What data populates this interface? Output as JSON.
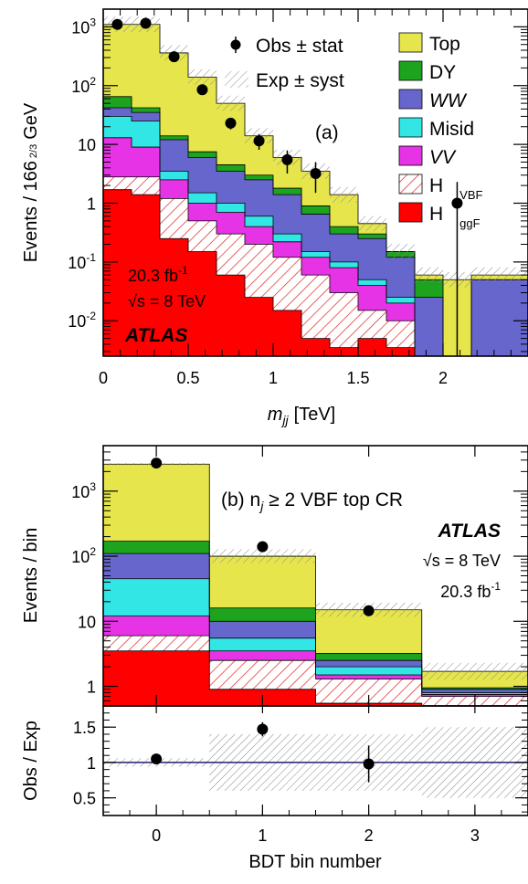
{
  "colors": {
    "Top": "#e6e64c",
    "DY": "#1da31d",
    "WW": "#6666cc",
    "Misid": "#33e6e6",
    "VV": "#e633e6",
    "HVBF": "#e02020",
    "HggF": "#ff0000",
    "syst": "#888888",
    "line": "#1f1f6b"
  },
  "chart_data": [
    {
      "type": "bar",
      "panel": "top",
      "tag": "(a)",
      "xlabel": "m",
      "xlabel_sub": "jj",
      "xlabel_unit": "[TeV]",
      "ylabel": "Events / 166",
      "ylabel_frac": "2/3",
      "ylabel_unit": "GeV",
      "ylim": [
        0.0025,
        2000
      ],
      "yscale": "log",
      "xlim": [
        0,
        2.5
      ],
      "xticks": [
        "0",
        "0.5",
        "1",
        "1.5",
        "2"
      ],
      "yticks": [
        "10-2",
        "10-1",
        "1",
        "10",
        "102",
        "103"
      ],
      "lumi": "20.3 fb-1",
      "energy": "√s = 8 TeV",
      "experiment": "ATLAS",
      "legend": [
        {
          "key": "obs",
          "label": "Obs ± stat"
        },
        {
          "key": "exp",
          "label": "Exp ± syst"
        },
        {
          "key": "Top",
          "label": "Top"
        },
        {
          "key": "DY",
          "label": "DY"
        },
        {
          "key": "WW",
          "label": "WW"
        },
        {
          "key": "Misid",
          "label": "Misid"
        },
        {
          "key": "VV",
          "label": "VV"
        },
        {
          "key": "HVBF",
          "label": "H",
          "sub": "VBF"
        },
        {
          "key": "HggF",
          "label": "H",
          "sub": "ggF"
        }
      ],
      "bin_edges": [
        0,
        0.1667,
        0.3333,
        0.5,
        0.6667,
        0.8333,
        1.0,
        1.1667,
        1.3333,
        1.5,
        1.6667,
        1.8333,
        2.0,
        2.1667,
        2.3333,
        2.5
      ],
      "stack_tops": {
        "HggF": [
          1.7,
          1.4,
          0.25,
          0.15,
          0.06,
          0.025,
          0.015,
          0.005,
          0.0035,
          0.005,
          0.0035,
          0.002,
          0.002,
          0.002,
          0.002
        ],
        "HVBF": [
          2.8,
          2.8,
          1.2,
          0.5,
          0.3,
          0.2,
          0.12,
          0.06,
          0.03,
          0.015,
          0.01,
          0.002,
          0.002,
          0.002,
          0.002
        ],
        "VV": [
          13,
          9,
          2.5,
          1.0,
          0.7,
          0.4,
          0.22,
          0.12,
          0.08,
          0.04,
          0.02,
          0.002,
          0.002,
          0.002,
          0.002
        ],
        "Misid": [
          30,
          25,
          3.5,
          1.5,
          1.0,
          0.6,
          0.3,
          0.15,
          0.1,
          0.05,
          0.025,
          0.002,
          0.002,
          0.002,
          0.002
        ],
        "WW": [
          42,
          35,
          12,
          6,
          3.5,
          2.5,
          1.4,
          0.65,
          0.3,
          0.25,
          0.12,
          0.025,
          0.002,
          0.05,
          0.05
        ],
        "DY": [
          65,
          42,
          14,
          7.5,
          4.5,
          3.0,
          1.8,
          0.9,
          0.4,
          0.3,
          0.15,
          0.05,
          0.002,
          0.05,
          0.05
        ],
        "Top": [
          1100,
          1100,
          360,
          140,
          50,
          14,
          6,
          3.5,
          1.4,
          0.45,
          0.15,
          0.06,
          0.05,
          0.06,
          0.06
        ]
      },
      "observed": [
        {
          "x": 0.083,
          "y": 1100,
          "err_lo": 1067,
          "err_hi": 1133
        },
        {
          "x": 0.25,
          "y": 1150,
          "err_lo": 1116,
          "err_hi": 1184
        },
        {
          "x": 0.417,
          "y": 310,
          "err_lo": 292,
          "err_hi": 328
        },
        {
          "x": 0.583,
          "y": 85,
          "err_lo": 76,
          "err_hi": 94
        },
        {
          "x": 0.75,
          "y": 23,
          "err_lo": 18,
          "err_hi": 28
        },
        {
          "x": 0.917,
          "y": 11.5,
          "err_lo": 8.1,
          "err_hi": 15
        },
        {
          "x": 1.083,
          "y": 5.5,
          "err_lo": 3.2,
          "err_hi": 7.9
        },
        {
          "x": 1.25,
          "y": 3.2,
          "err_lo": 1.5,
          "err_hi": 5.0
        },
        {
          "x": 2.083,
          "y": 1.0,
          "err_lo": 0.0025,
          "err_hi": 2.3
        }
      ]
    },
    {
      "type": "bar",
      "panel": "bottom",
      "tag": "(b) nj ≥ 2 VBF top CR",
      "tag_prefix": "(b) n",
      "tag_sub": "j",
      "tag_rest": " ≥ 2 VBF top CR",
      "xlabel": "BDT bin number",
      "ylabel": "Events / bin",
      "ratio_ylabel": "Obs / Exp",
      "experiment": "ATLAS",
      "energy": "√s = 8 TeV",
      "lumi": "20.3 fb-1",
      "ylim": [
        0.5,
        5000
      ],
      "yscale": "log",
      "xlim": [
        -0.5,
        3.5
      ],
      "xticks": [
        "0",
        "1",
        "2",
        "3"
      ],
      "yticks": [
        "1",
        "10",
        "102",
        "103"
      ],
      "categories": [
        "0",
        "1",
        "2",
        "3"
      ],
      "stack_tops": {
        "HggF": [
          3.5,
          0.9,
          0.55,
          0.5
        ],
        "HVBF": [
          6,
          2.5,
          1.3,
          0.7
        ],
        "VV": [
          12,
          3.5,
          1.5,
          0.75
        ],
        "Misid": [
          45,
          5.5,
          2.0,
          0.8
        ],
        "WW": [
          110,
          10,
          2.5,
          0.9
        ],
        "DY": [
          170,
          16,
          3.2,
          0.95
        ],
        "Top": [
          2600,
          100,
          15,
          1.7
        ]
      },
      "observed": [
        2700,
        140,
        14.5,
        null
      ],
      "ratio": {
        "ylim": [
          0.25,
          1.8
        ],
        "yticks": [
          "0.5",
          "1",
          "1.5"
        ],
        "values": [
          1.05,
          1.47,
          0.98
        ],
        "err": [
          0.03,
          0.1,
          0.26
        ],
        "syst_band": [
          0.06,
          0.4,
          0.4,
          0.5
        ]
      }
    }
  ]
}
